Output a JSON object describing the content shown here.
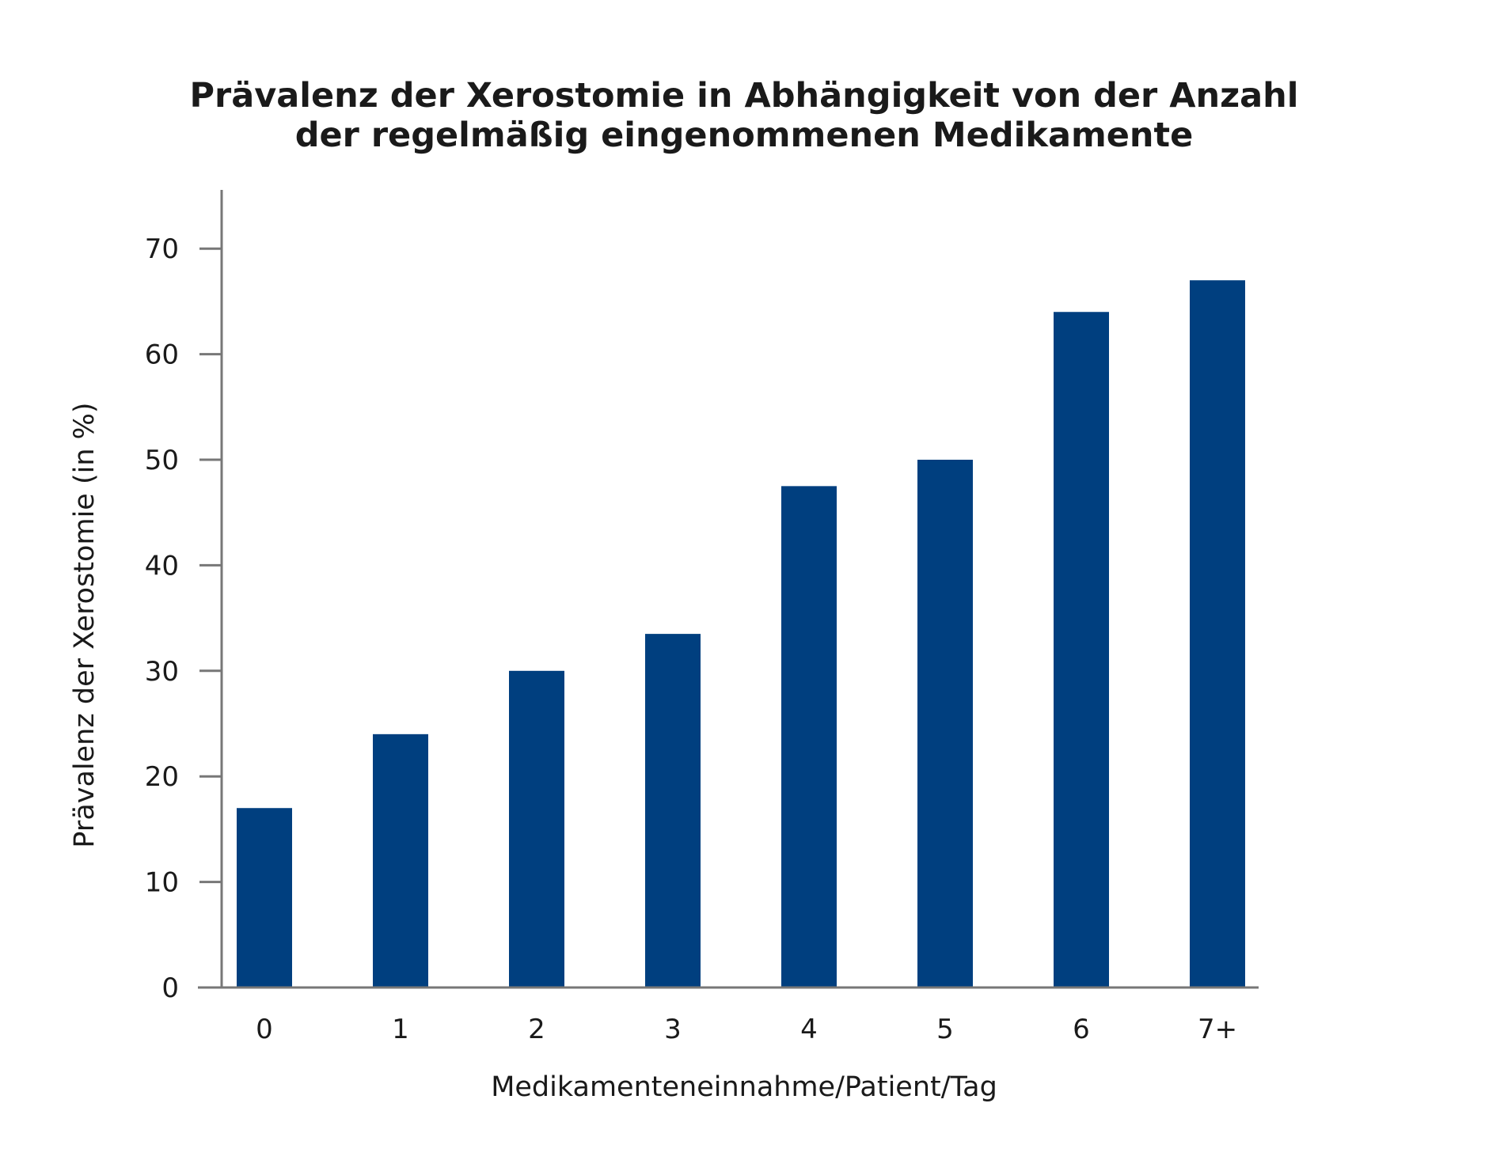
{
  "chart_data": {
    "type": "bar",
    "title_lines": [
      "Prävalenz der Xerostomie in Abhängigkeit von der Anzahl",
      "der regelmäßig eingenommenen Medikamente"
    ],
    "xlabel": "Medikamenteneinnahme/Patient/Tag",
    "ylabel": "Prävalenz der Xerostomie (in %)",
    "categories": [
      "0",
      "1",
      "2",
      "3",
      "4",
      "5",
      "6",
      "7+"
    ],
    "values": [
      17,
      24,
      30,
      33.5,
      47.5,
      50,
      64,
      67
    ],
    "ylim": [
      0,
      75
    ],
    "yticks": [
      0,
      10,
      20,
      30,
      40,
      50,
      60,
      70
    ],
    "grid": false,
    "legend": "none",
    "bar_color": "#003f7f",
    "axis_color": "#777777"
  }
}
